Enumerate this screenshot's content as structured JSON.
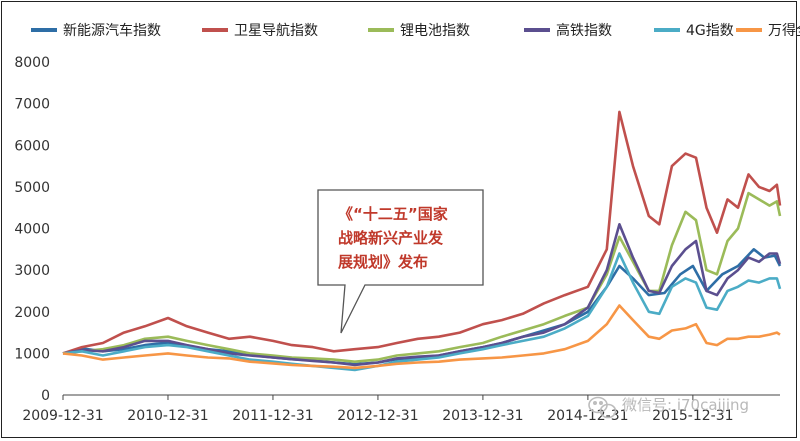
{
  "chart_data": {
    "type": "line",
    "xlabel": "",
    "ylabel": "",
    "ylim": [
      0,
      8000
    ],
    "yticks": [
      "0",
      "1000",
      "2000",
      "3000",
      "4000",
      "5000",
      "6000",
      "7000",
      "8000"
    ],
    "xticks": [
      "2009-12-31",
      "2010-12-31",
      "2011-12-31",
      "2012-12-31",
      "2013-12-31",
      "2014-12-31",
      "2015-12-31"
    ],
    "x_range": [
      2009.92,
      2016.75
    ],
    "grid": false,
    "legend_position": "top",
    "series": [
      {
        "name": "新能源汽车指数",
        "color": "#2e6ea6",
        "points": [
          [
            2009.92,
            1000
          ],
          [
            2010.1,
            1120
          ],
          [
            2010.3,
            1050
          ],
          [
            2010.5,
            1100
          ],
          [
            2010.7,
            1200
          ],
          [
            2010.92,
            1260
          ],
          [
            2011.1,
            1180
          ],
          [
            2011.3,
            1100
          ],
          [
            2011.5,
            1050
          ],
          [
            2011.7,
            960
          ],
          [
            2011.92,
            900
          ],
          [
            2012.1,
            860
          ],
          [
            2012.3,
            830
          ],
          [
            2012.5,
            780
          ],
          [
            2012.7,
            740
          ],
          [
            2012.92,
            780
          ],
          [
            2013.1,
            860
          ],
          [
            2013.3,
            900
          ],
          [
            2013.5,
            950
          ],
          [
            2013.7,
            1050
          ],
          [
            2013.92,
            1150
          ],
          [
            2014.1,
            1250
          ],
          [
            2014.3,
            1400
          ],
          [
            2014.5,
            1550
          ],
          [
            2014.7,
            1700
          ],
          [
            2014.92,
            2000
          ],
          [
            2015.1,
            2600
          ],
          [
            2015.22,
            3100
          ],
          [
            2015.35,
            2800
          ],
          [
            2015.5,
            2400
          ],
          [
            2015.65,
            2450
          ],
          [
            2015.8,
            2900
          ],
          [
            2015.92,
            3100
          ],
          [
            2016.05,
            2500
          ],
          [
            2016.2,
            2900
          ],
          [
            2016.35,
            3100
          ],
          [
            2016.5,
            3500
          ],
          [
            2016.6,
            3300
          ],
          [
            2016.7,
            3350
          ],
          [
            2016.75,
            3100
          ]
        ]
      },
      {
        "name": "卫星导航指数",
        "color": "#c0504d",
        "points": [
          [
            2009.92,
            1000
          ],
          [
            2010.1,
            1150
          ],
          [
            2010.3,
            1250
          ],
          [
            2010.5,
            1500
          ],
          [
            2010.7,
            1650
          ],
          [
            2010.92,
            1850
          ],
          [
            2011.1,
            1650
          ],
          [
            2011.3,
            1500
          ],
          [
            2011.5,
            1350
          ],
          [
            2011.7,
            1400
          ],
          [
            2011.92,
            1300
          ],
          [
            2012.1,
            1200
          ],
          [
            2012.3,
            1150
          ],
          [
            2012.5,
            1050
          ],
          [
            2012.7,
            1100
          ],
          [
            2012.92,
            1150
          ],
          [
            2013.1,
            1250
          ],
          [
            2013.3,
            1350
          ],
          [
            2013.5,
            1400
          ],
          [
            2013.7,
            1500
          ],
          [
            2013.92,
            1700
          ],
          [
            2014.1,
            1800
          ],
          [
            2014.3,
            1950
          ],
          [
            2014.5,
            2200
          ],
          [
            2014.7,
            2400
          ],
          [
            2014.92,
            2600
          ],
          [
            2015.1,
            3500
          ],
          [
            2015.22,
            6800
          ],
          [
            2015.35,
            5500
          ],
          [
            2015.5,
            4300
          ],
          [
            2015.6,
            4100
          ],
          [
            2015.72,
            5500
          ],
          [
            2015.85,
            5800
          ],
          [
            2015.95,
            5700
          ],
          [
            2016.05,
            4500
          ],
          [
            2016.15,
            3900
          ],
          [
            2016.25,
            4700
          ],
          [
            2016.35,
            4500
          ],
          [
            2016.45,
            5300
          ],
          [
            2016.55,
            5000
          ],
          [
            2016.65,
            4900
          ],
          [
            2016.72,
            5050
          ],
          [
            2016.75,
            4550
          ]
        ]
      },
      {
        "name": "锂电池指数",
        "color": "#9bbb59",
        "points": [
          [
            2009.92,
            1000
          ],
          [
            2010.1,
            1050
          ],
          [
            2010.3,
            1100
          ],
          [
            2010.5,
            1200
          ],
          [
            2010.7,
            1350
          ],
          [
            2010.92,
            1400
          ],
          [
            2011.1,
            1300
          ],
          [
            2011.3,
            1200
          ],
          [
            2011.5,
            1100
          ],
          [
            2011.7,
            1000
          ],
          [
            2011.92,
            950
          ],
          [
            2012.1,
            900
          ],
          [
            2012.3,
            880
          ],
          [
            2012.5,
            850
          ],
          [
            2012.7,
            800
          ],
          [
            2012.92,
            850
          ],
          [
            2013.1,
            950
          ],
          [
            2013.3,
            1000
          ],
          [
            2013.5,
            1050
          ],
          [
            2013.7,
            1150
          ],
          [
            2013.92,
            1250
          ],
          [
            2014.1,
            1400
          ],
          [
            2014.3,
            1550
          ],
          [
            2014.5,
            1700
          ],
          [
            2014.7,
            1900
          ],
          [
            2014.92,
            2100
          ],
          [
            2015.1,
            2900
          ],
          [
            2015.22,
            3800
          ],
          [
            2015.35,
            3200
          ],
          [
            2015.5,
            2500
          ],
          [
            2015.6,
            2500
          ],
          [
            2015.72,
            3600
          ],
          [
            2015.85,
            4400
          ],
          [
            2015.95,
            4200
          ],
          [
            2016.05,
            3000
          ],
          [
            2016.15,
            2900
          ],
          [
            2016.25,
            3700
          ],
          [
            2016.35,
            4000
          ],
          [
            2016.45,
            4850
          ],
          [
            2016.55,
            4700
          ],
          [
            2016.65,
            4550
          ],
          [
            2016.72,
            4650
          ],
          [
            2016.75,
            4300
          ]
        ]
      },
      {
        "name": "高铁指数",
        "color": "#5b4f8f",
        "points": [
          [
            2009.92,
            1000
          ],
          [
            2010.1,
            1080
          ],
          [
            2010.3,
            1050
          ],
          [
            2010.5,
            1150
          ],
          [
            2010.7,
            1300
          ],
          [
            2010.92,
            1300
          ],
          [
            2011.1,
            1200
          ],
          [
            2011.3,
            1100
          ],
          [
            2011.5,
            1000
          ],
          [
            2011.7,
            950
          ],
          [
            2011.92,
            900
          ],
          [
            2012.1,
            860
          ],
          [
            2012.3,
            820
          ],
          [
            2012.5,
            780
          ],
          [
            2012.7,
            720
          ],
          [
            2012.92,
            780
          ],
          [
            2013.1,
            880
          ],
          [
            2013.3,
            920
          ],
          [
            2013.5,
            950
          ],
          [
            2013.7,
            1050
          ],
          [
            2013.92,
            1150
          ],
          [
            2014.1,
            1250
          ],
          [
            2014.3,
            1400
          ],
          [
            2014.5,
            1500
          ],
          [
            2014.7,
            1700
          ],
          [
            2014.92,
            2100
          ],
          [
            2015.1,
            3000
          ],
          [
            2015.22,
            4100
          ],
          [
            2015.35,
            3300
          ],
          [
            2015.5,
            2500
          ],
          [
            2015.6,
            2450
          ],
          [
            2015.72,
            3100
          ],
          [
            2015.85,
            3500
          ],
          [
            2015.95,
            3700
          ],
          [
            2016.05,
            2500
          ],
          [
            2016.15,
            2400
          ],
          [
            2016.25,
            2800
          ],
          [
            2016.35,
            3000
          ],
          [
            2016.45,
            3300
          ],
          [
            2016.55,
            3200
          ],
          [
            2016.65,
            3400
          ],
          [
            2016.72,
            3400
          ],
          [
            2016.75,
            3150
          ]
        ]
      },
      {
        "name": "4G指数",
        "color": "#4bacc6",
        "points": [
          [
            2009.92,
            1000
          ],
          [
            2010.1,
            1050
          ],
          [
            2010.3,
            950
          ],
          [
            2010.5,
            1050
          ],
          [
            2010.7,
            1150
          ],
          [
            2010.92,
            1200
          ],
          [
            2011.1,
            1150
          ],
          [
            2011.3,
            1050
          ],
          [
            2011.5,
            950
          ],
          [
            2011.7,
            850
          ],
          [
            2011.92,
            800
          ],
          [
            2012.1,
            750
          ],
          [
            2012.3,
            700
          ],
          [
            2012.5,
            650
          ],
          [
            2012.7,
            600
          ],
          [
            2012.92,
            700
          ],
          [
            2013.1,
            800
          ],
          [
            2013.3,
            850
          ],
          [
            2013.5,
            900
          ],
          [
            2013.7,
            1000
          ],
          [
            2013.92,
            1100
          ],
          [
            2014.1,
            1200
          ],
          [
            2014.3,
            1300
          ],
          [
            2014.5,
            1400
          ],
          [
            2014.7,
            1600
          ],
          [
            2014.92,
            1900
          ],
          [
            2015.1,
            2600
          ],
          [
            2015.22,
            3400
          ],
          [
            2015.35,
            2700
          ],
          [
            2015.5,
            2000
          ],
          [
            2015.6,
            1950
          ],
          [
            2015.72,
            2600
          ],
          [
            2015.85,
            2800
          ],
          [
            2015.95,
            2700
          ],
          [
            2016.05,
            2100
          ],
          [
            2016.15,
            2050
          ],
          [
            2016.25,
            2500
          ],
          [
            2016.35,
            2600
          ],
          [
            2016.45,
            2750
          ],
          [
            2016.55,
            2700
          ],
          [
            2016.65,
            2800
          ],
          [
            2016.72,
            2800
          ],
          [
            2016.75,
            2550
          ]
        ]
      },
      {
        "name": "万得全A",
        "color": "#f79646",
        "points": [
          [
            2009.92,
            1000
          ],
          [
            2010.1,
            950
          ],
          [
            2010.3,
            850
          ],
          [
            2010.5,
            900
          ],
          [
            2010.7,
            950
          ],
          [
            2010.92,
            1000
          ],
          [
            2011.1,
            950
          ],
          [
            2011.3,
            900
          ],
          [
            2011.5,
            880
          ],
          [
            2011.7,
            800
          ],
          [
            2011.92,
            760
          ],
          [
            2012.1,
            720
          ],
          [
            2012.3,
            700
          ],
          [
            2012.5,
            680
          ],
          [
            2012.7,
            650
          ],
          [
            2012.92,
            700
          ],
          [
            2013.1,
            750
          ],
          [
            2013.3,
            780
          ],
          [
            2013.5,
            800
          ],
          [
            2013.7,
            850
          ],
          [
            2013.92,
            880
          ],
          [
            2014.1,
            900
          ],
          [
            2014.3,
            950
          ],
          [
            2014.5,
            1000
          ],
          [
            2014.7,
            1100
          ],
          [
            2014.92,
            1300
          ],
          [
            2015.1,
            1700
          ],
          [
            2015.22,
            2150
          ],
          [
            2015.35,
            1800
          ],
          [
            2015.5,
            1400
          ],
          [
            2015.6,
            1350
          ],
          [
            2015.72,
            1550
          ],
          [
            2015.85,
            1600
          ],
          [
            2015.95,
            1700
          ],
          [
            2016.05,
            1250
          ],
          [
            2016.15,
            1200
          ],
          [
            2016.25,
            1350
          ],
          [
            2016.35,
            1350
          ],
          [
            2016.45,
            1400
          ],
          [
            2016.55,
            1400
          ],
          [
            2016.65,
            1450
          ],
          [
            2016.72,
            1500
          ],
          [
            2016.75,
            1450
          ]
        ]
      }
    ]
  },
  "callout": {
    "lines": [
      "《“十二五”国家",
      "战略新兴产业发",
      "展规划》发布"
    ]
  },
  "watermark": {
    "text": "微信号: i70caijing",
    "icon": "wechat-icon"
  }
}
